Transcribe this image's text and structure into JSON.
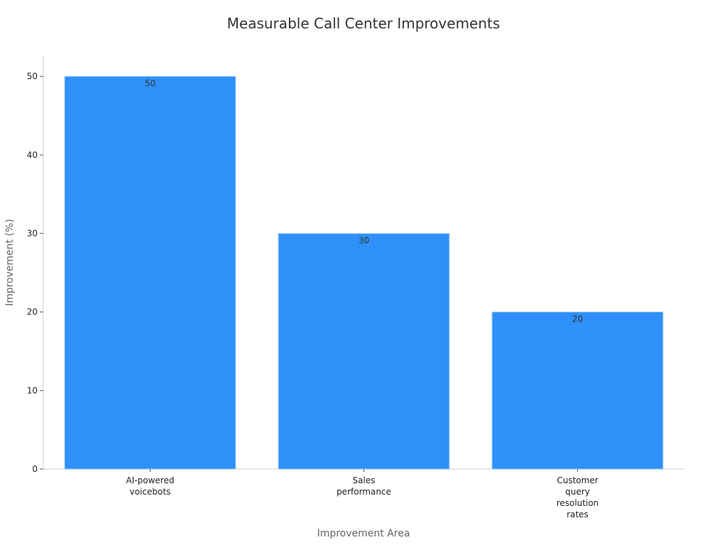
{
  "chart_data": {
    "type": "bar",
    "title": "Measurable Call Center Improvements",
    "xlabel": "Improvement Area",
    "ylabel": "Improvement (%)",
    "categories": [
      [
        "AI-powered",
        "voicebots"
      ],
      [
        "Sales",
        "performance"
      ],
      [
        "Customer",
        "query",
        "resolution",
        "rates"
      ]
    ],
    "values": [
      50,
      30,
      20
    ],
    "data_labels": [
      "50",
      "30",
      "20"
    ],
    "ylim": [
      0,
      52.5
    ],
    "yticks": [
      0,
      10,
      20,
      30,
      40,
      50
    ],
    "ytick_labels": [
      "0",
      "10",
      "20",
      "30",
      "40",
      "50"
    ],
    "grid": false,
    "legend": "none",
    "colors": {
      "bar": "#2e90f8",
      "bar_edge": "#9fc8f5",
      "axis": "#cccccc",
      "tick_text": "#222222",
      "label_text": "#666666",
      "title_text": "#333333",
      "data_label_text": "#333333"
    }
  }
}
